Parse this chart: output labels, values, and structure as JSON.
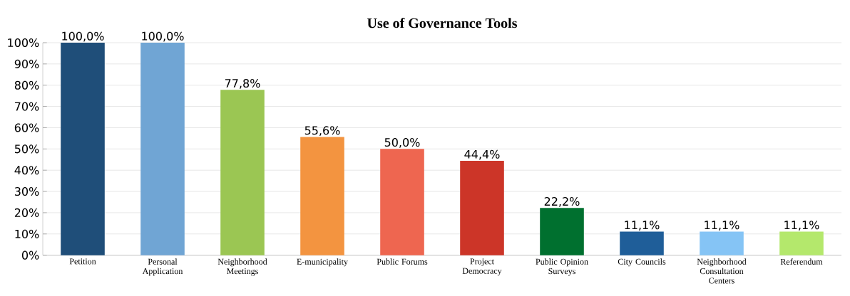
{
  "chart_data": {
    "type": "bar",
    "title": "Use of Governance Tools",
    "categories": [
      "Petition",
      "Personal Application",
      "Neighborhood Meetings",
      "E-municipality",
      "Public Forums",
      "Project Democracy",
      "Public Opinion Surveys",
      "City Councils",
      "Neighborhood Consultation Centers",
      "Referendum"
    ],
    "values": [
      100,
      100,
      77.8,
      55.6,
      50,
      44.4,
      22.2,
      11.1,
      11.1,
      11.1
    ],
    "value_labels": [
      "100,0%",
      "100,0%",
      "77,8%",
      "55,6%",
      "50,0%",
      "44,4%",
      "22,2%",
      "11,1%",
      "11,1%",
      "11,1%"
    ],
    "colors": [
      "#1f4e79",
      "#70a5d4",
      "#9bc653",
      "#f39440",
      "#ee6650",
      "#cc3528",
      "#00702f",
      "#1f5e99",
      "#85c4f5",
      "#b4e86c"
    ],
    "ylim": [
      0,
      100
    ],
    "yticks": [
      {
        "value": 0,
        "label": "0%"
      },
      {
        "value": 10,
        "label": "10%"
      },
      {
        "value": 20,
        "label": "20%"
      },
      {
        "value": 30,
        "label": "30%"
      },
      {
        "value": 40,
        "label": "40%"
      },
      {
        "value": 50,
        "label": "50%"
      },
      {
        "value": 60,
        "label": "60%"
      },
      {
        "value": 70,
        "label": "70%"
      },
      {
        "value": 80,
        "label": "80%"
      },
      {
        "value": 90,
        "label": "90%"
      },
      {
        "value": 100,
        "label": "100%"
      }
    ],
    "grid": "y"
  }
}
